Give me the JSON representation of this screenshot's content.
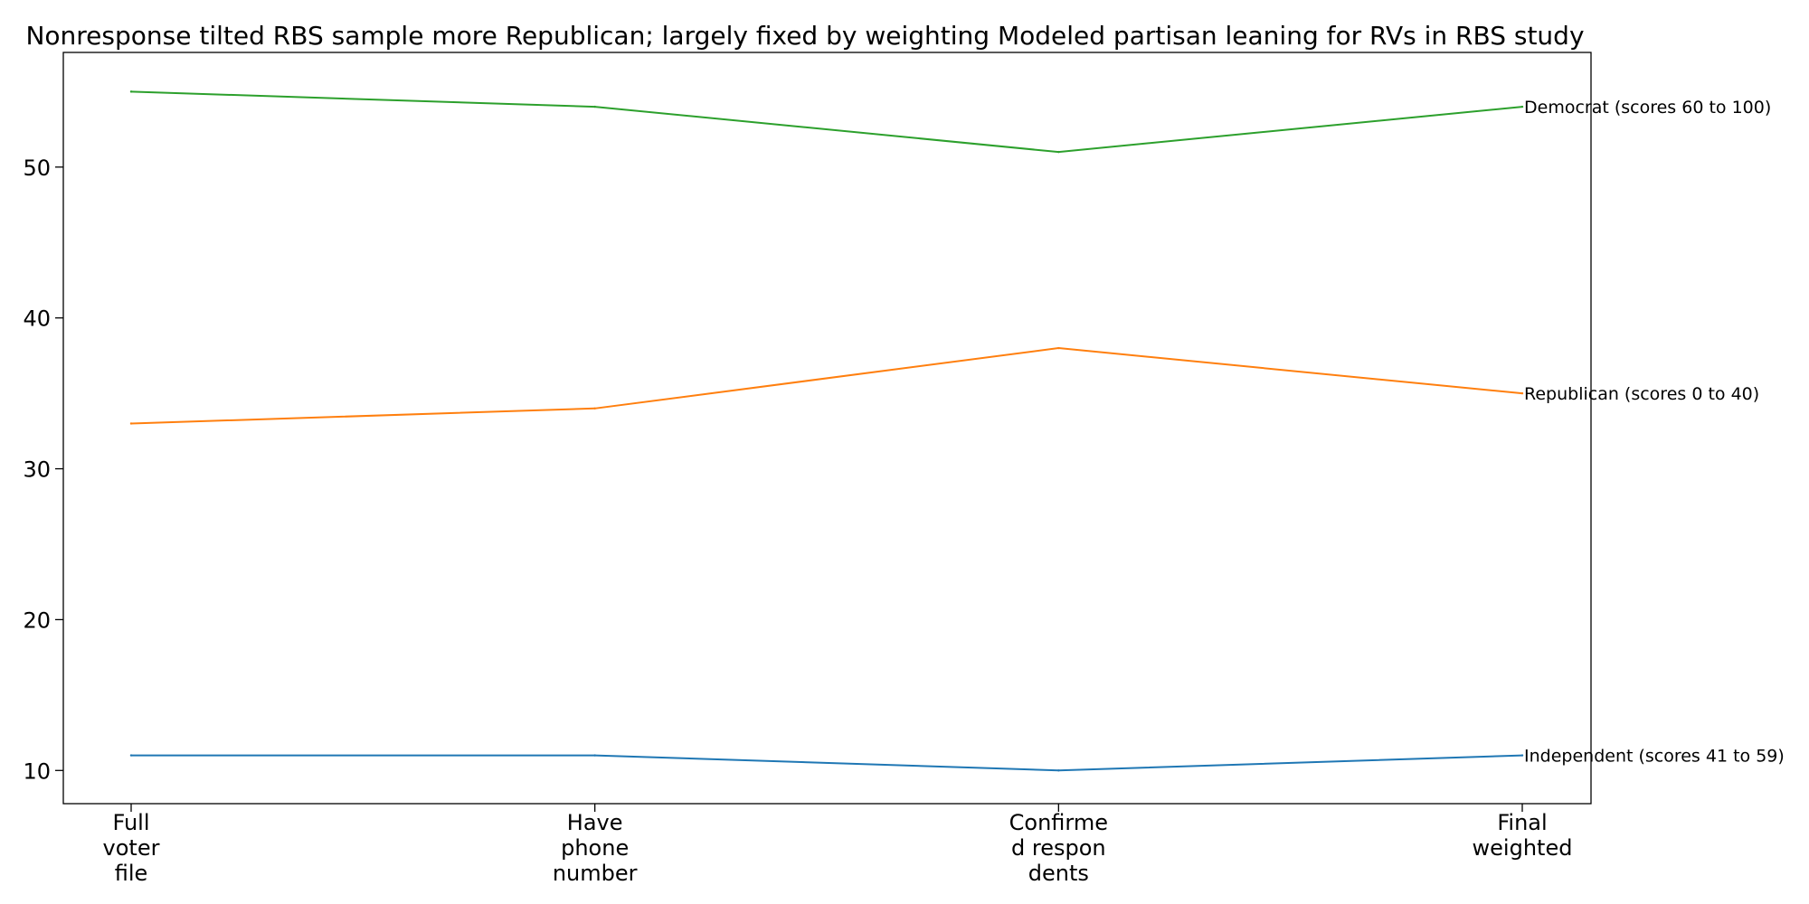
{
  "chart_data": {
    "type": "line",
    "title": "Nonresponse tilted RBS sample more Republican; largely fixed by weighting Modeled partisan leaning for RVs in RBS study",
    "xlabel": "",
    "ylabel": "",
    "categories": [
      "Full voter file",
      "Have phone number",
      "Confirmed respondents",
      "Final weighted"
    ],
    "category_tick_lines": [
      [
        "Full",
        "voter",
        "file"
      ],
      [
        "Have",
        "phone",
        "number"
      ],
      [
        "Confirme",
        "d respon",
        "dents"
      ],
      [
        "Final",
        "weighted"
      ]
    ],
    "ylim": [
      7.8,
      57.6
    ],
    "yticks": [
      10,
      20,
      30,
      40,
      50
    ],
    "grid": false,
    "legend": "none",
    "series": [
      {
        "name": "Independent (scores 41 to 59)",
        "values": [
          11,
          11,
          10,
          11
        ],
        "color": "#1f77b4"
      },
      {
        "name": "Republican (scores 0 to 40)",
        "values": [
          33,
          34,
          38,
          35
        ],
        "color": "#ff7f0e"
      },
      {
        "name": "Democrat (scores 60 to 100)",
        "values": [
          55,
          54,
          51,
          54
        ],
        "color": "#2ca02c"
      }
    ]
  }
}
